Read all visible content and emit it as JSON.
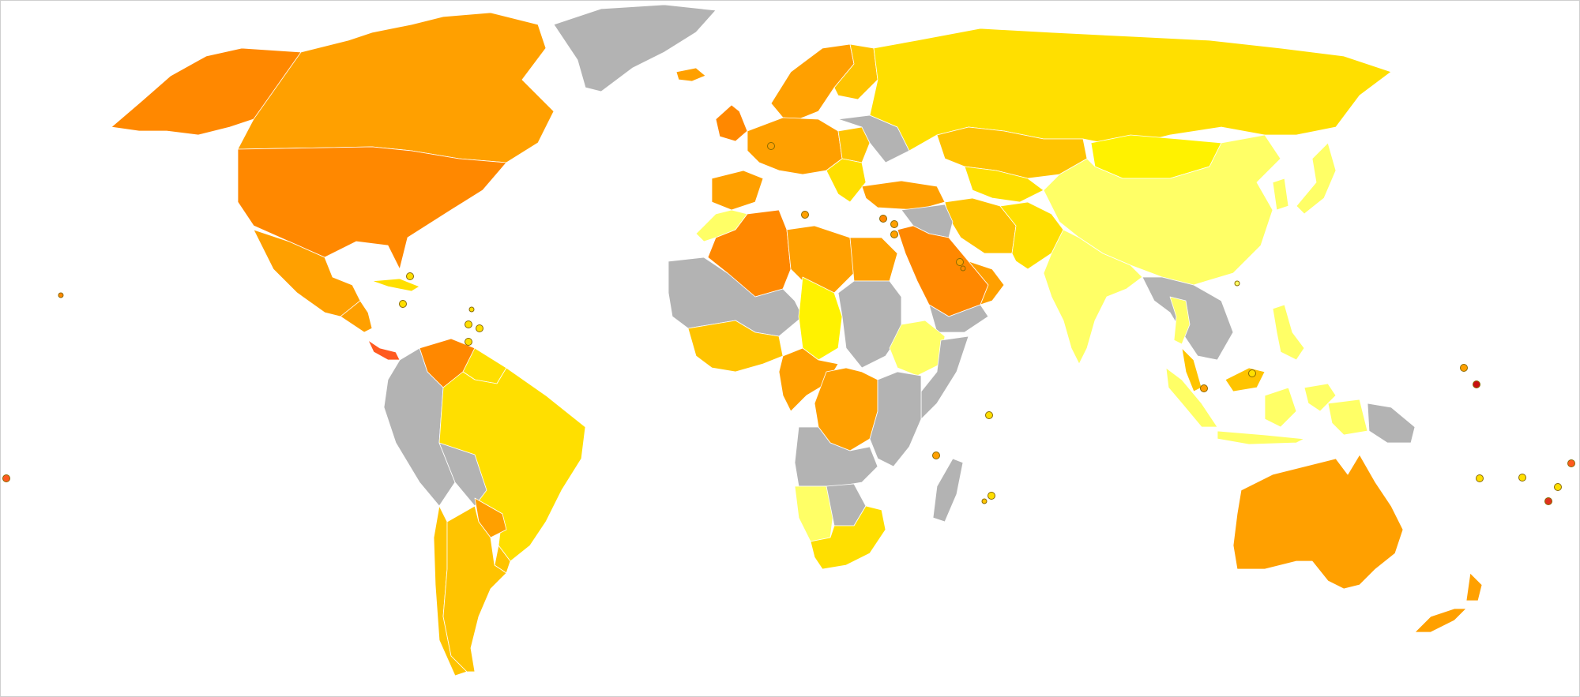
{
  "map": {
    "type": "choropleth-world",
    "projection": "robinson-like",
    "legend": "none",
    "palette": {
      "no_data": "#b3b3b3",
      "level_1": "#ffff66",
      "level_2": "#fff200",
      "level_3": "#ffdf00",
      "level_4": "#ffc400",
      "level_5": "#ffa000",
      "level_6": "#ff8800",
      "level_7": "#ff5a1f",
      "level_8": "#e0301e",
      "level_9": "#c81010"
    },
    "regions": [
      {
        "id": "alaska",
        "level": "level_6"
      },
      {
        "id": "canada",
        "level": "level_5"
      },
      {
        "id": "usa",
        "level": "level_6"
      },
      {
        "id": "mexico",
        "level": "level_5"
      },
      {
        "id": "central-america",
        "level": "level_5"
      },
      {
        "id": "panama",
        "level": "level_7"
      },
      {
        "id": "cuba",
        "level": "level_3"
      },
      {
        "id": "venezuela",
        "level": "level_6"
      },
      {
        "id": "guyana",
        "level": "level_3"
      },
      {
        "id": "colombia-peru-ecuador",
        "level": "no_data"
      },
      {
        "id": "brazil",
        "level": "level_3"
      },
      {
        "id": "bolivia",
        "level": "no_data"
      },
      {
        "id": "paraguay",
        "level": "level_5"
      },
      {
        "id": "uruguay",
        "level": "level_4"
      },
      {
        "id": "chile",
        "level": "level_4"
      },
      {
        "id": "argentina",
        "level": "level_4"
      },
      {
        "id": "greenland",
        "level": "no_data"
      },
      {
        "id": "iceland",
        "level": "level_5"
      },
      {
        "id": "ireland-uk",
        "level": "level_6"
      },
      {
        "id": "scandinavia",
        "level": "level_5"
      },
      {
        "id": "finland",
        "level": "level_4"
      },
      {
        "id": "western-europe",
        "level": "level_5"
      },
      {
        "id": "iberia",
        "level": "level_5"
      },
      {
        "id": "eastern-europe",
        "level": "level_4"
      },
      {
        "id": "belarus-ukraine",
        "level": "no_data"
      },
      {
        "id": "balkans",
        "level": "level_3"
      },
      {
        "id": "turkey",
        "level": "level_5"
      },
      {
        "id": "russia",
        "level": "level_3"
      },
      {
        "id": "kazakhstan",
        "level": "level_4"
      },
      {
        "id": "central-asia",
        "level": "level_3"
      },
      {
        "id": "mongolia",
        "level": "level_2"
      },
      {
        "id": "china",
        "level": "level_1"
      },
      {
        "id": "korea-japan",
        "level": "level_1"
      },
      {
        "id": "iran",
        "level": "level_4"
      },
      {
        "id": "afghanistan-pakistan",
        "level": "level_3"
      },
      {
        "id": "iraq-syria",
        "level": "no_data"
      },
      {
        "id": "saudi-arabia",
        "level": "level_6"
      },
      {
        "id": "yemen",
        "level": "no_data"
      },
      {
        "id": "oman-uae",
        "level": "level_5"
      },
      {
        "id": "india",
        "level": "level_1"
      },
      {
        "id": "south-east-asia-main",
        "level": "no_data"
      },
      {
        "id": "thailand",
        "level": "level_1"
      },
      {
        "id": "malaysia",
        "level": "level_4"
      },
      {
        "id": "indonesia",
        "level": "level_1"
      },
      {
        "id": "philippines",
        "level": "level_1"
      },
      {
        "id": "papua-new-guinea",
        "level": "no_data"
      },
      {
        "id": "australia",
        "level": "level_5"
      },
      {
        "id": "new-zealand",
        "level": "level_5"
      },
      {
        "id": "morocco",
        "level": "level_1"
      },
      {
        "id": "algeria",
        "level": "level_6"
      },
      {
        "id": "libya",
        "level": "level_5"
      },
      {
        "id": "egypt",
        "level": "level_5"
      },
      {
        "id": "sahel-west",
        "level": "no_data"
      },
      {
        "id": "west-africa-coast",
        "level": "level_4"
      },
      {
        "id": "chad",
        "level": "level_2"
      },
      {
        "id": "sudan",
        "level": "no_data"
      },
      {
        "id": "ethiopia",
        "level": "level_1"
      },
      {
        "id": "somalia",
        "level": "no_data"
      },
      {
        "id": "central-africa",
        "level": "level_5"
      },
      {
        "id": "drc",
        "level": "level_5"
      },
      {
        "id": "east-africa",
        "level": "no_data"
      },
      {
        "id": "angola-zambia",
        "level": "no_data"
      },
      {
        "id": "namibia",
        "level": "level_1"
      },
      {
        "id": "botswana",
        "level": "no_data"
      },
      {
        "id": "south-africa",
        "level": "level_3"
      },
      {
        "id": "madagascar",
        "level": "no_data"
      }
    ],
    "islands": [
      {
        "id": "hawaii",
        "level": "level_6"
      },
      {
        "id": "pacific-far-west",
        "level": "level_7"
      },
      {
        "id": "caribbean-1",
        "level": "level_3"
      },
      {
        "id": "caribbean-2",
        "level": "level_3"
      },
      {
        "id": "caribbean-3",
        "level": "level_3"
      },
      {
        "id": "caribbean-4",
        "level": "level_3"
      },
      {
        "id": "caribbean-5",
        "level": "level_3"
      },
      {
        "id": "caribbean-6",
        "level": "level_3"
      },
      {
        "id": "luxembourg",
        "level": "level_5"
      },
      {
        "id": "malta",
        "level": "level_5"
      },
      {
        "id": "cyprus",
        "level": "level_6"
      },
      {
        "id": "lebanon",
        "level": "level_5"
      },
      {
        "id": "israel",
        "level": "level_5"
      },
      {
        "id": "bahrain",
        "level": "level_5"
      },
      {
        "id": "qatar",
        "level": "level_6"
      },
      {
        "id": "seychelles",
        "level": "level_3"
      },
      {
        "id": "comoros",
        "level": "level_5"
      },
      {
        "id": "mauritius",
        "level": "level_3"
      },
      {
        "id": "reunion",
        "level": "level_4"
      },
      {
        "id": "singapore",
        "level": "level_5"
      },
      {
        "id": "brunei",
        "level": "level_3"
      },
      {
        "id": "hong-kong",
        "level": "level_1"
      },
      {
        "id": "marshall-islands",
        "level": "level_5"
      },
      {
        "id": "nauru",
        "level": "level_9"
      },
      {
        "id": "vanuatu",
        "level": "level_3"
      },
      {
        "id": "fiji",
        "level": "level_3"
      },
      {
        "id": "samoa",
        "level": "level_7"
      },
      {
        "id": "tonga",
        "level": "level_8"
      },
      {
        "id": "cook-islands",
        "level": "level_3"
      }
    ]
  }
}
